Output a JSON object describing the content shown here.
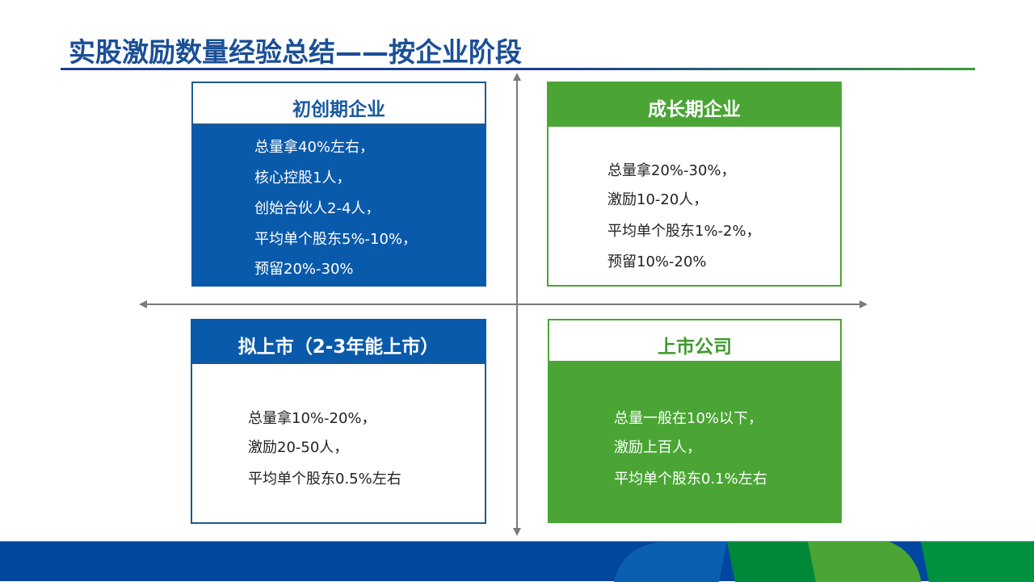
{
  "title": "实股激励数量经验总结——按企业阶段",
  "quadrants": [
    {
      "heading": "初创期企业",
      "lines": [
        "总量拿40%左右，",
        "核心控股1人，",
        "创始合伙人2-4人，",
        "平均单个股东5%-10%，",
        "预留20%-30%"
      ]
    },
    {
      "heading": "成长期企业",
      "lines": [
        "总量拿20%-30%，",
        "激励10-20人，",
        "平均单个股东1%-2%，",
        "预留10%-20%"
      ]
    },
    {
      "heading": "拟上市（2-3年能上市）",
      "lines": [
        "总量拿10%-20%，",
        "激励20-50人，",
        "平均单个股东0.5%左右"
      ]
    },
    {
      "heading": "上市公司",
      "lines": [
        "总量一般在10%以下，",
        "激励上百人，",
        "平均单个股东0.1%左右"
      ]
    }
  ],
  "colors": {
    "blue": "#0a5aab",
    "green": "#4aa535",
    "title": "#1a4f96"
  }
}
